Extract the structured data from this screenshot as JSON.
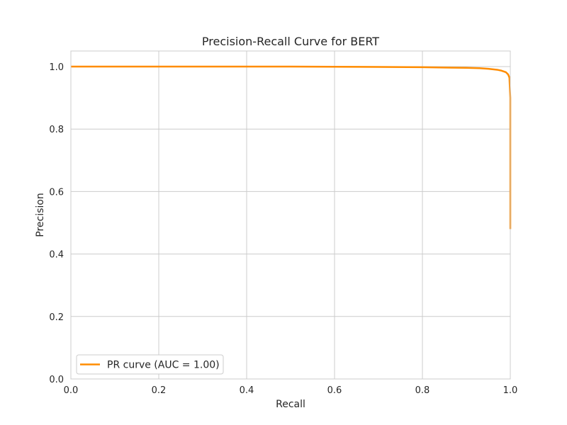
{
  "chart_data": {
    "type": "line",
    "title": "Precision-Recall Curve for BERT",
    "xlabel": "Recall",
    "ylabel": "Precision",
    "xlim": [
      0.0,
      1.0
    ],
    "ylim": [
      0.0,
      1.05
    ],
    "xticks": [
      "0.0",
      "0.2",
      "0.4",
      "0.6",
      "0.8",
      "1.0"
    ],
    "yticks": [
      "0.0",
      "0.2",
      "0.4",
      "0.6",
      "0.8",
      "1.0"
    ],
    "grid": true,
    "legend_position": "lower-left",
    "series": [
      {
        "name": "PR curve (AUC = 1.00)",
        "color": "#ff8c00",
        "x": [
          0.0,
          0.1,
          0.2,
          0.3,
          0.4,
          0.5,
          0.6,
          0.7,
          0.8,
          0.85,
          0.9,
          0.93,
          0.95,
          0.97,
          0.98,
          0.99,
          0.995,
          0.998,
          1.0,
          1.0,
          1.0
        ],
        "y": [
          1.0,
          1.0,
          1.0,
          1.0,
          1.0,
          1.0,
          0.9995,
          0.999,
          0.998,
          0.997,
          0.996,
          0.995,
          0.993,
          0.99,
          0.987,
          0.982,
          0.975,
          0.965,
          0.9,
          0.6,
          0.48
        ]
      }
    ]
  }
}
